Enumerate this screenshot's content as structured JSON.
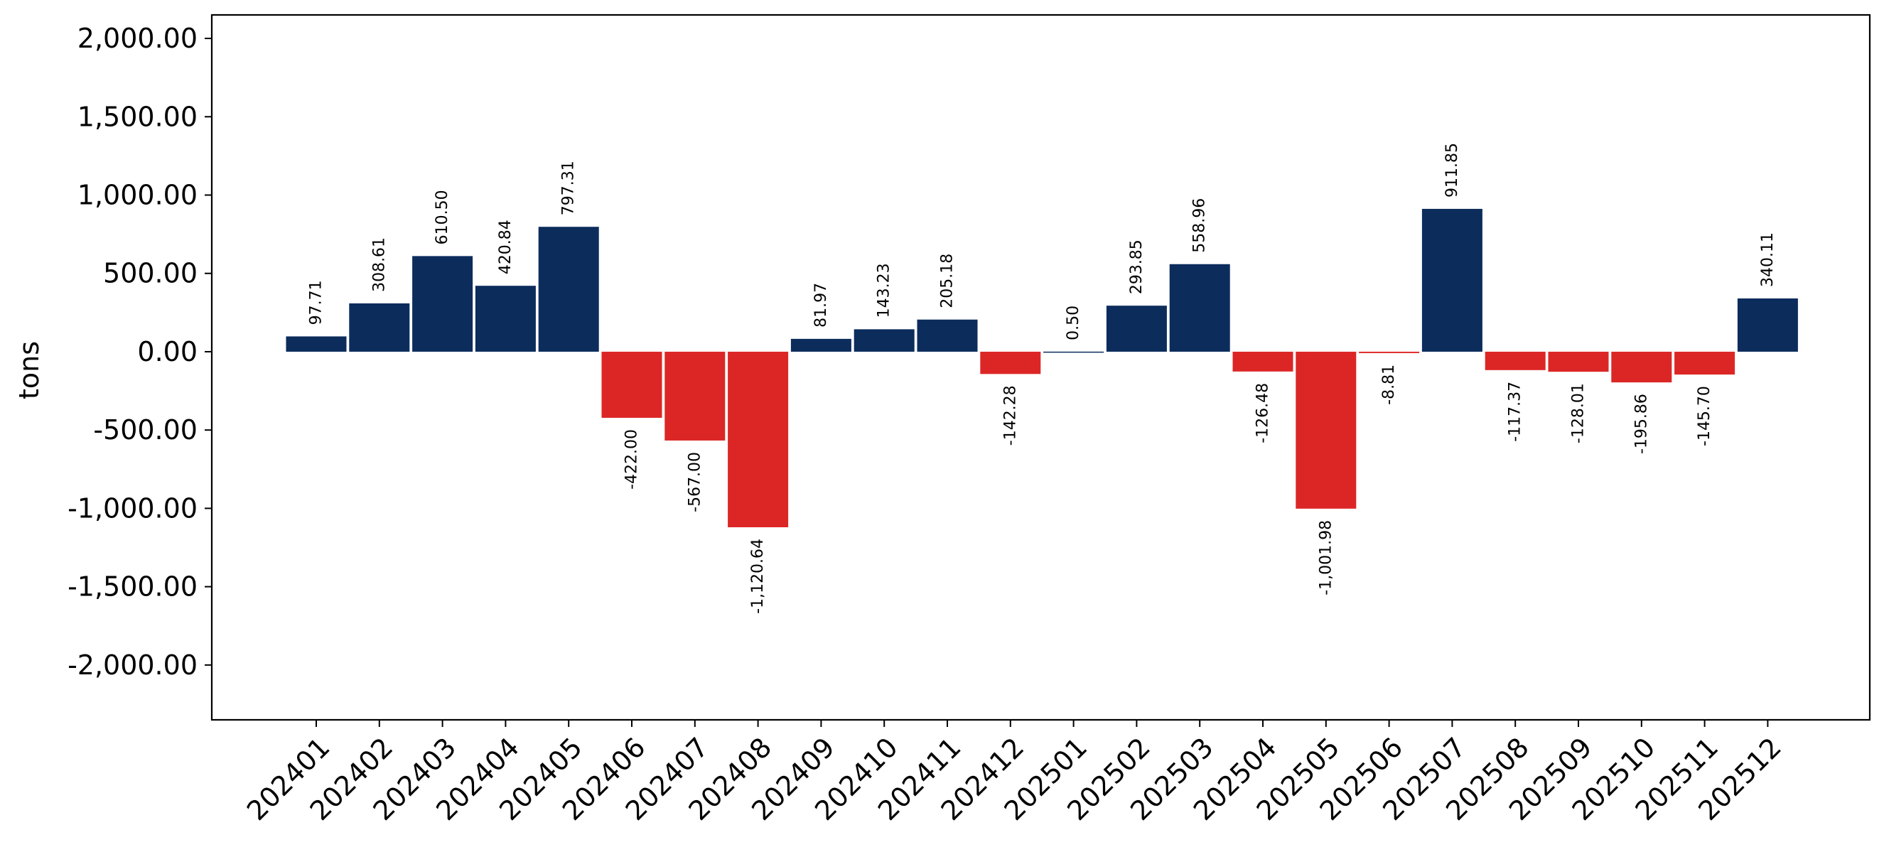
{
  "chart_data": {
    "type": "bar",
    "title": "",
    "xlabel": "",
    "ylabel": "tons",
    "ylim": [
      -2350,
      2150
    ],
    "yticks": [
      -2000,
      -1500,
      -1000,
      -500,
      0,
      500,
      1000,
      1500,
      2000
    ],
    "ytick_labels": [
      "-2,000.00",
      "-1,500.00",
      "-1,000.00",
      "-500.00",
      "0.00",
      "500.00",
      "1,000.00",
      "1,500.00",
      "2,000.00"
    ],
    "grid": false,
    "legend": "none",
    "categories": [
      "202401",
      "202402",
      "202403",
      "202404",
      "202405",
      "202406",
      "202407",
      "202408",
      "202409",
      "202410",
      "202411",
      "202412",
      "202501",
      "202502",
      "202503",
      "202504",
      "202505",
      "202506",
      "202507",
      "202508",
      "202509",
      "202510",
      "202511",
      "202512"
    ],
    "values": [
      97.71,
      308.61,
      610.5,
      420.84,
      797.31,
      -422.0,
      -567.0,
      -1120.64,
      81.97,
      143.23,
      205.18,
      -142.28,
      0.5,
      293.85,
      558.96,
      -126.48,
      -1001.98,
      -8.81,
      911.85,
      -117.37,
      -128.01,
      -195.86,
      -145.7,
      340.11
    ],
    "data_labels": [
      "97.71",
      "308.61",
      "610.50",
      "420.84",
      "797.31",
      "-422.00",
      "-567.00",
      "-1,120.64",
      "81.97",
      "143.23",
      "205.18",
      "-142.28",
      "0.50",
      "293.85",
      "558.96",
      "-126.48",
      "-1,001.98",
      "-8.81",
      "911.85",
      "-117.37",
      "-128.01",
      "-195.86",
      "-145.70",
      "340.11"
    ],
    "colors": {
      "positive": "#0c2c5c",
      "negative": "#dc2626"
    }
  }
}
